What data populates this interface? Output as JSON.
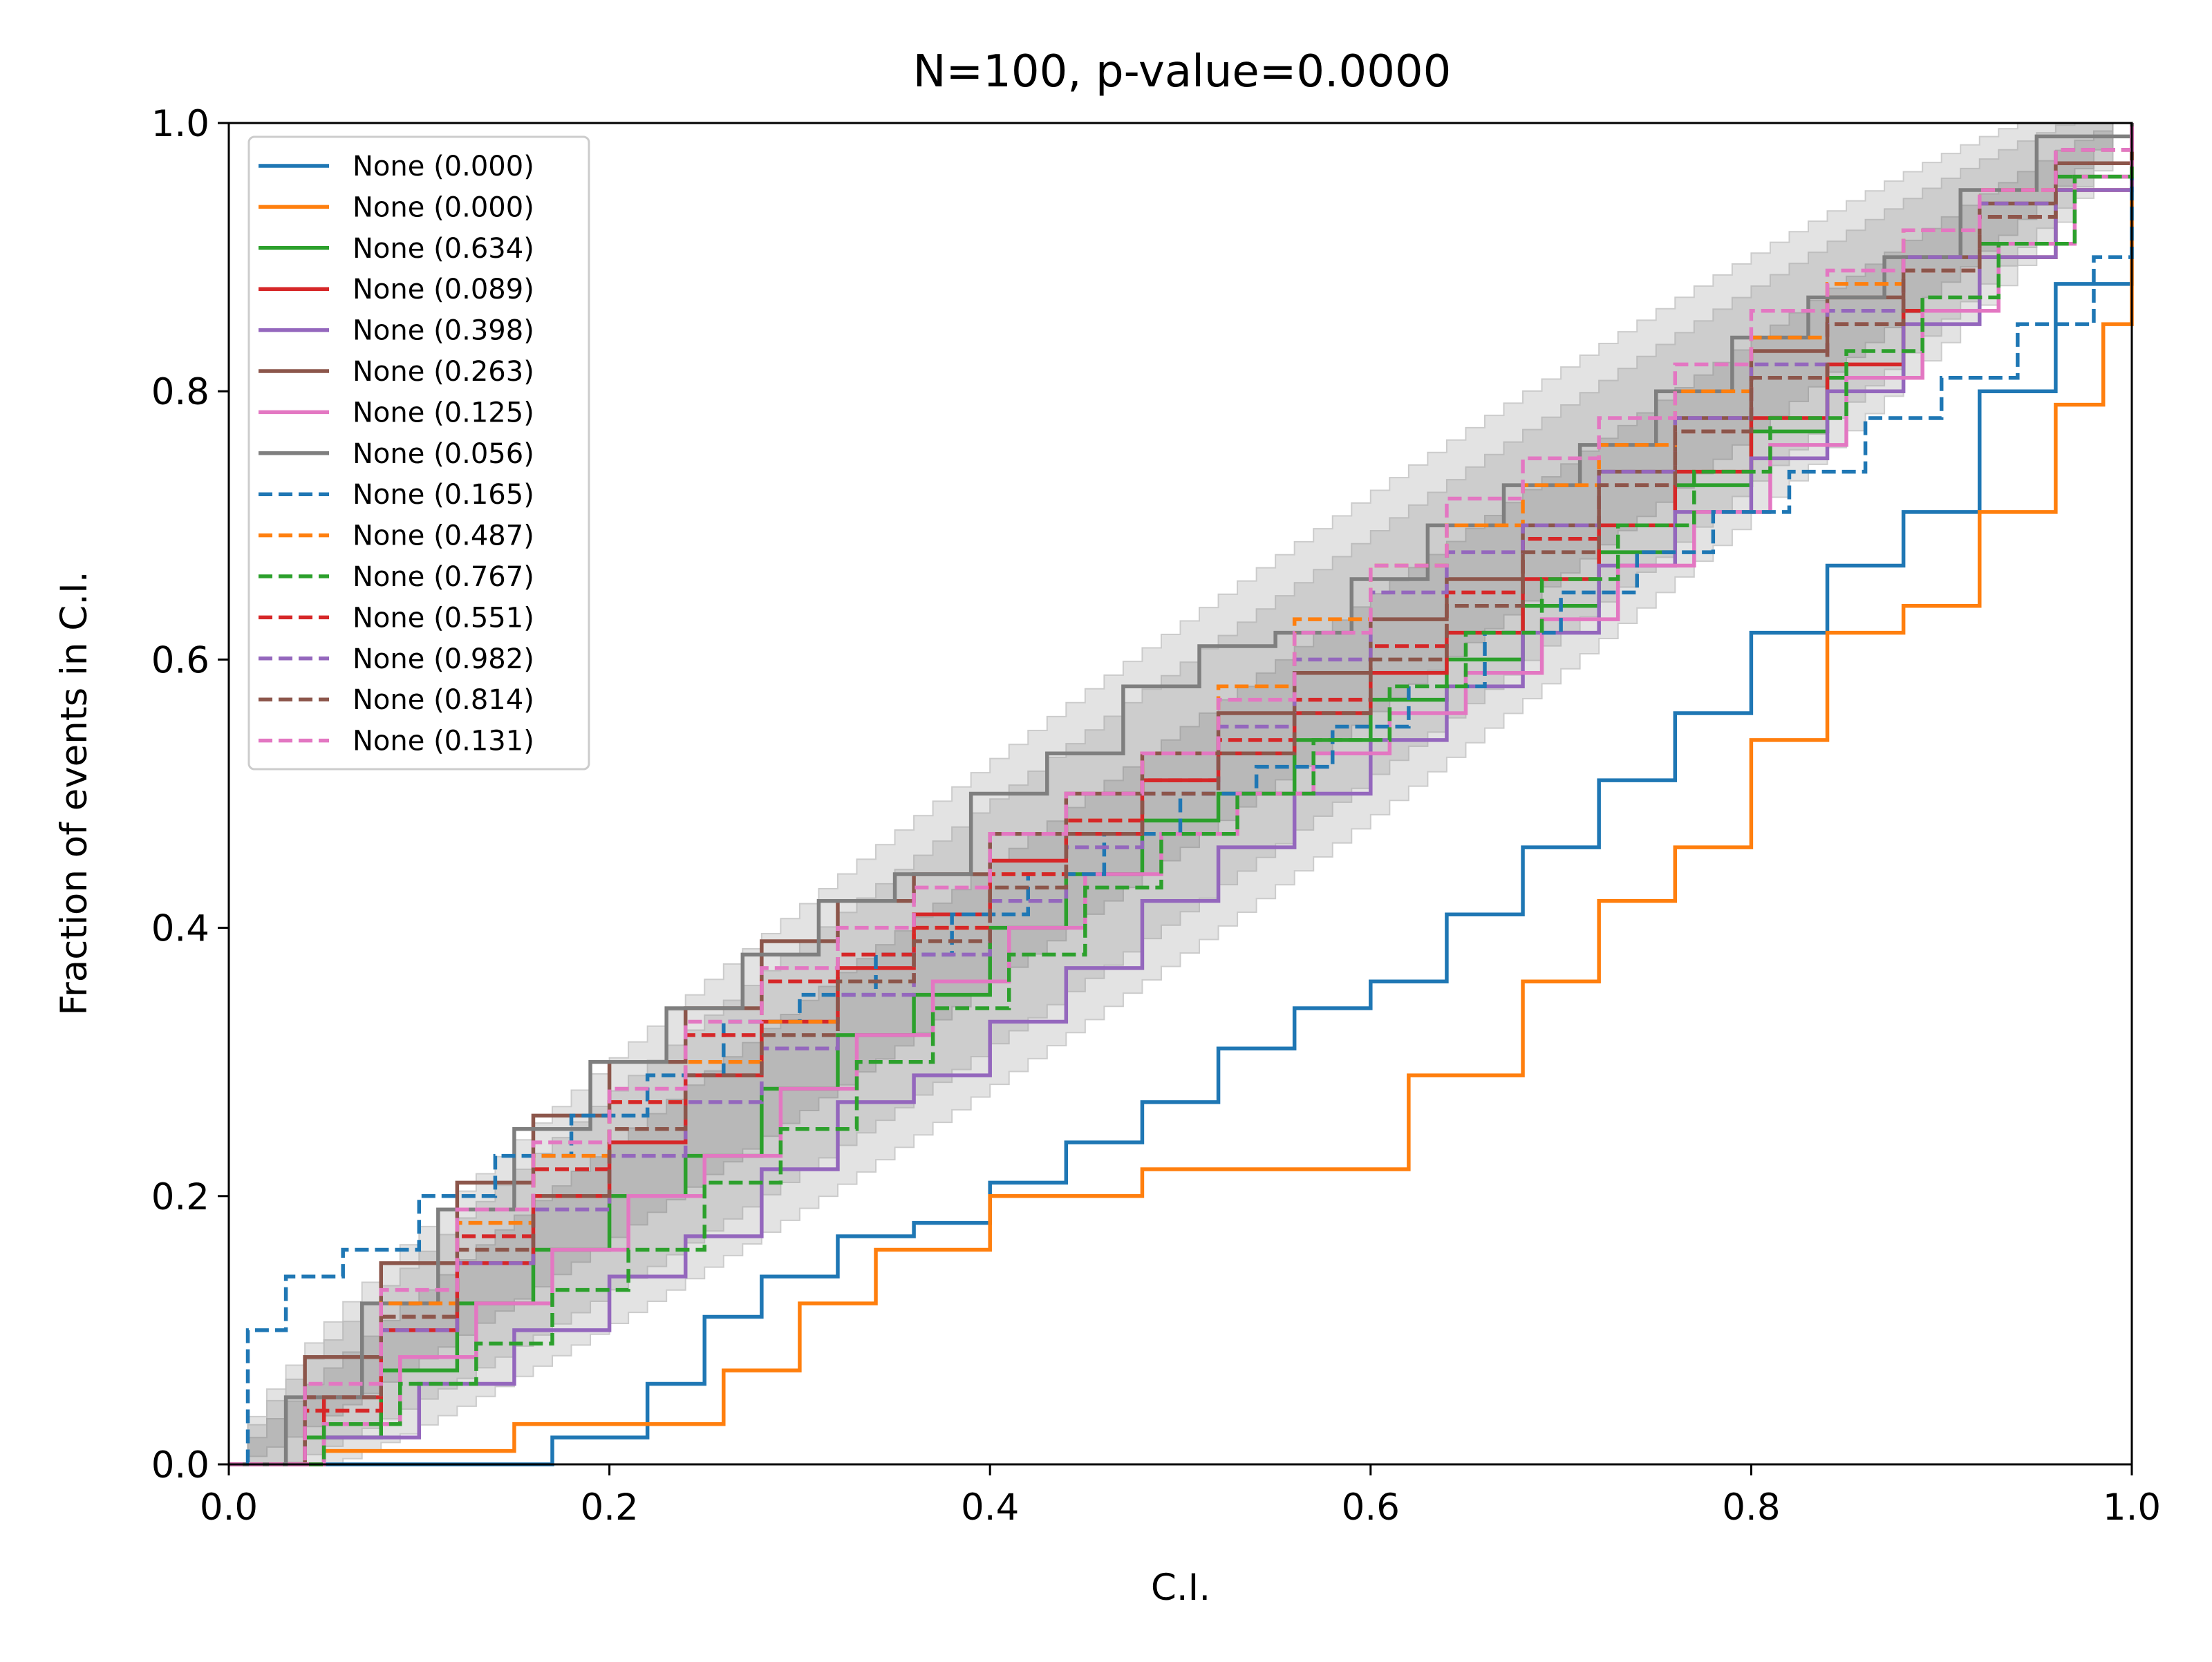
{
  "chart_data": {
    "type": "line",
    "title": "N=100, p-value=0.0000",
    "xlabel": "C.I.",
    "ylabel": "Fraction of events in C.I.",
    "xlim": [
      0,
      1
    ],
    "ylim": [
      0,
      1
    ],
    "xticks": [
      "0.0",
      "0.2",
      "0.4",
      "0.6",
      "0.8",
      "1.0"
    ],
    "yticks": [
      "0.0",
      "0.2",
      "0.4",
      "0.6",
      "0.8",
      "1.0"
    ],
    "grid": false,
    "legend_position": "upper-left",
    "confidence_bands": [
      {
        "name": "outer",
        "level": 0.99,
        "color": "#e3e3e3",
        "edge": "#cccccc"
      },
      {
        "name": "middle",
        "level": 0.95,
        "color": "#cdcdcd",
        "edge": "#bdbdbd"
      },
      {
        "name": "inner",
        "level": 0.68,
        "color": "#b8b8b8",
        "edge": "#aaaaaa"
      }
    ],
    "series": [
      {
        "name": "None (0.000)",
        "color": "#1f77b4",
        "dash": "solid",
        "x": [
          0,
          0.12,
          0.17,
          0.22,
          0.25,
          0.28,
          0.32,
          0.36,
          0.4,
          0.44,
          0.48,
          0.52,
          0.56,
          0.6,
          0.64,
          0.68,
          0.72,
          0.76,
          0.8,
          0.84,
          0.88,
          0.92,
          0.96,
          1.0
        ],
        "y": [
          0,
          0,
          0.02,
          0.06,
          0.11,
          0.14,
          0.17,
          0.18,
          0.21,
          0.24,
          0.27,
          0.31,
          0.34,
          0.36,
          0.41,
          0.46,
          0.51,
          0.56,
          0.62,
          0.67,
          0.71,
          0.8,
          0.88,
          1.0
        ]
      },
      {
        "name": "None (0.000)",
        "color": "#ff7f0e",
        "dash": "solid",
        "x": [
          0,
          0.05,
          0.15,
          0.22,
          0.26,
          0.3,
          0.34,
          0.4,
          0.48,
          0.57,
          0.62,
          0.68,
          0.72,
          0.76,
          0.8,
          0.84,
          0.88,
          0.92,
          0.96,
          0.985,
          1.0
        ],
        "y": [
          0,
          0.01,
          0.03,
          0.03,
          0.07,
          0.12,
          0.16,
          0.2,
          0.22,
          0.22,
          0.29,
          0.36,
          0.42,
          0.46,
          0.54,
          0.62,
          0.64,
          0.71,
          0.79,
          0.85,
          1.0
        ]
      },
      {
        "name": "None (0.634)",
        "color": "#2ca02c",
        "dash": "solid",
        "x": [
          0,
          0.04,
          0.08,
          0.12,
          0.16,
          0.2,
          0.24,
          0.28,
          0.32,
          0.36,
          0.4,
          0.44,
          0.48,
          0.52,
          0.56,
          0.6,
          0.64,
          0.68,
          0.72,
          0.76,
          0.8,
          0.84,
          0.88,
          0.92,
          0.96,
          1.0
        ],
        "y": [
          0,
          0.02,
          0.07,
          0.12,
          0.16,
          0.2,
          0.23,
          0.28,
          0.32,
          0.35,
          0.4,
          0.44,
          0.48,
          0.5,
          0.54,
          0.57,
          0.6,
          0.64,
          0.68,
          0.73,
          0.77,
          0.81,
          0.86,
          0.91,
          0.96,
          1.0
        ]
      },
      {
        "name": "None (0.089)",
        "color": "#d62728",
        "dash": "solid",
        "x": [
          0,
          0.05,
          0.08,
          0.12,
          0.16,
          0.2,
          0.24,
          0.28,
          0.32,
          0.36,
          0.4,
          0.44,
          0.48,
          0.52,
          0.56,
          0.6,
          0.64,
          0.68,
          0.72,
          0.76,
          0.8,
          0.84,
          0.88,
          0.92,
          0.96,
          1.0
        ],
        "y": [
          0,
          0.05,
          0.1,
          0.15,
          0.2,
          0.24,
          0.29,
          0.33,
          0.37,
          0.41,
          0.45,
          0.47,
          0.51,
          0.53,
          0.56,
          0.59,
          0.62,
          0.66,
          0.7,
          0.74,
          0.78,
          0.82,
          0.86,
          0.9,
          0.95,
          1.0
        ]
      },
      {
        "name": "None (0.398)",
        "color": "#9467bd",
        "dash": "solid",
        "x": [
          0,
          0.05,
          0.1,
          0.15,
          0.2,
          0.24,
          0.28,
          0.32,
          0.36,
          0.4,
          0.44,
          0.48,
          0.52,
          0.56,
          0.6,
          0.64,
          0.68,
          0.72,
          0.76,
          0.8,
          0.84,
          0.88,
          0.92,
          0.96,
          1.0
        ],
        "y": [
          0,
          0.02,
          0.06,
          0.1,
          0.14,
          0.17,
          0.22,
          0.27,
          0.29,
          0.33,
          0.37,
          0.42,
          0.46,
          0.5,
          0.54,
          0.58,
          0.62,
          0.67,
          0.71,
          0.75,
          0.8,
          0.85,
          0.9,
          0.95,
          1.0
        ]
      },
      {
        "name": "None (0.263)",
        "color": "#8c564b",
        "dash": "solid",
        "x": [
          0,
          0.04,
          0.08,
          0.12,
          0.16,
          0.2,
          0.24,
          0.28,
          0.32,
          0.36,
          0.4,
          0.44,
          0.48,
          0.52,
          0.56,
          0.6,
          0.64,
          0.68,
          0.72,
          0.76,
          0.8,
          0.84,
          0.88,
          0.92,
          0.96,
          1.0
        ],
        "y": [
          0,
          0.08,
          0.15,
          0.21,
          0.26,
          0.3,
          0.34,
          0.39,
          0.42,
          0.44,
          0.47,
          0.5,
          0.53,
          0.56,
          0.59,
          0.63,
          0.66,
          0.7,
          0.74,
          0.78,
          0.83,
          0.87,
          0.9,
          0.94,
          0.97,
          1.0
        ]
      },
      {
        "name": "None (0.125)",
        "color": "#e377c2",
        "dash": "solid",
        "x": [
          0,
          0.05,
          0.09,
          0.13,
          0.17,
          0.21,
          0.25,
          0.29,
          0.33,
          0.37,
          0.41,
          0.45,
          0.49,
          0.53,
          0.57,
          0.61,
          0.65,
          0.69,
          0.73,
          0.77,
          0.81,
          0.85,
          0.89,
          0.93,
          0.97,
          1.0
        ],
        "y": [
          0,
          0.03,
          0.08,
          0.12,
          0.16,
          0.2,
          0.23,
          0.28,
          0.32,
          0.36,
          0.4,
          0.44,
          0.47,
          0.5,
          0.53,
          0.56,
          0.59,
          0.63,
          0.67,
          0.71,
          0.76,
          0.81,
          0.86,
          0.91,
          0.96,
          1.0
        ]
      },
      {
        "name": "None (0.056)",
        "color": "#7f7f7f",
        "dash": "solid",
        "x": [
          0,
          0.03,
          0.07,
          0.11,
          0.15,
          0.19,
          0.23,
          0.27,
          0.31,
          0.35,
          0.39,
          0.43,
          0.47,
          0.51,
          0.55,
          0.59,
          0.63,
          0.67,
          0.71,
          0.75,
          0.79,
          0.83,
          0.87,
          0.91,
          0.95,
          1.0
        ],
        "y": [
          0,
          0.05,
          0.12,
          0.19,
          0.25,
          0.3,
          0.34,
          0.38,
          0.42,
          0.44,
          0.5,
          0.53,
          0.58,
          0.61,
          0.62,
          0.66,
          0.7,
          0.73,
          0.76,
          0.8,
          0.84,
          0.87,
          0.9,
          0.95,
          0.99,
          1.0
        ]
      },
      {
        "name": "None (0.165)",
        "color": "#1f77b4",
        "dash": "dashed",
        "x": [
          0,
          0.01,
          0.03,
          0.06,
          0.1,
          0.14,
          0.18,
          0.22,
          0.26,
          0.3,
          0.34,
          0.38,
          0.42,
          0.46,
          0.5,
          0.54,
          0.58,
          0.62,
          0.66,
          0.7,
          0.74,
          0.78,
          0.82,
          0.86,
          0.9,
          0.94,
          0.98,
          1.0
        ],
        "y": [
          0,
          0.1,
          0.14,
          0.16,
          0.2,
          0.23,
          0.26,
          0.29,
          0.33,
          0.35,
          0.38,
          0.41,
          0.44,
          0.47,
          0.5,
          0.52,
          0.55,
          0.58,
          0.62,
          0.65,
          0.68,
          0.71,
          0.74,
          0.78,
          0.81,
          0.85,
          0.9,
          0.96
        ]
      },
      {
        "name": "None (0.487)",
        "color": "#ff7f0e",
        "dash": "dashed",
        "x": [
          0,
          0.04,
          0.08,
          0.12,
          0.16,
          0.2,
          0.24,
          0.28,
          0.32,
          0.36,
          0.4,
          0.44,
          0.48,
          0.52,
          0.56,
          0.6,
          0.64,
          0.68,
          0.72,
          0.76,
          0.8,
          0.84,
          0.88,
          0.92,
          0.96,
          1.0
        ],
        "y": [
          0,
          0.05,
          0.12,
          0.18,
          0.23,
          0.27,
          0.3,
          0.33,
          0.36,
          0.4,
          0.44,
          0.48,
          0.53,
          0.58,
          0.63,
          0.67,
          0.7,
          0.73,
          0.76,
          0.8,
          0.84,
          0.88,
          0.92,
          0.95,
          0.98,
          1.0
        ]
      },
      {
        "name": "None (0.767)",
        "color": "#2ca02c",
        "dash": "dashed",
        "x": [
          0,
          0.05,
          0.09,
          0.13,
          0.17,
          0.21,
          0.25,
          0.29,
          0.33,
          0.37,
          0.41,
          0.45,
          0.49,
          0.53,
          0.57,
          0.61,
          0.65,
          0.69,
          0.73,
          0.77,
          0.81,
          0.85,
          0.89,
          0.93,
          0.97,
          1.0
        ],
        "y": [
          0,
          0.03,
          0.06,
          0.09,
          0.13,
          0.16,
          0.21,
          0.25,
          0.3,
          0.34,
          0.38,
          0.43,
          0.47,
          0.5,
          0.54,
          0.58,
          0.62,
          0.66,
          0.7,
          0.74,
          0.78,
          0.83,
          0.87,
          0.91,
          0.96,
          1.0
        ]
      },
      {
        "name": "None (0.551)",
        "color": "#d62728",
        "dash": "dashed",
        "x": [
          0,
          0.04,
          0.08,
          0.12,
          0.16,
          0.2,
          0.24,
          0.28,
          0.32,
          0.36,
          0.4,
          0.44,
          0.48,
          0.52,
          0.56,
          0.6,
          0.64,
          0.68,
          0.72,
          0.76,
          0.8,
          0.84,
          0.88,
          0.92,
          0.96,
          1.0
        ],
        "y": [
          0,
          0.04,
          0.11,
          0.17,
          0.22,
          0.27,
          0.32,
          0.36,
          0.38,
          0.4,
          0.44,
          0.48,
          0.51,
          0.54,
          0.57,
          0.61,
          0.65,
          0.69,
          0.73,
          0.77,
          0.81,
          0.85,
          0.89,
          0.93,
          0.97,
          1.0
        ]
      },
      {
        "name": "None (0.982)",
        "color": "#9467bd",
        "dash": "dashed",
        "x": [
          0,
          0.04,
          0.08,
          0.12,
          0.16,
          0.2,
          0.24,
          0.28,
          0.32,
          0.36,
          0.4,
          0.44,
          0.48,
          0.52,
          0.56,
          0.6,
          0.64,
          0.68,
          0.72,
          0.76,
          0.8,
          0.84,
          0.88,
          0.92,
          0.96,
          1.0
        ],
        "y": [
          0,
          0.05,
          0.1,
          0.15,
          0.19,
          0.23,
          0.27,
          0.31,
          0.35,
          0.38,
          0.42,
          0.46,
          0.5,
          0.55,
          0.6,
          0.65,
          0.68,
          0.7,
          0.74,
          0.78,
          0.82,
          0.86,
          0.9,
          0.94,
          0.98,
          1.0
        ]
      },
      {
        "name": "None (0.814)",
        "color": "#8c564b",
        "dash": "dashed",
        "x": [
          0,
          0.04,
          0.08,
          0.12,
          0.16,
          0.2,
          0.24,
          0.28,
          0.32,
          0.36,
          0.4,
          0.44,
          0.48,
          0.52,
          0.56,
          0.6,
          0.64,
          0.68,
          0.72,
          0.76,
          0.8,
          0.84,
          0.88,
          0.92,
          0.96,
          1.0
        ],
        "y": [
          0,
          0.05,
          0.11,
          0.16,
          0.2,
          0.25,
          0.29,
          0.32,
          0.36,
          0.39,
          0.43,
          0.47,
          0.5,
          0.53,
          0.56,
          0.6,
          0.64,
          0.68,
          0.73,
          0.77,
          0.81,
          0.85,
          0.89,
          0.93,
          0.97,
          1.0
        ]
      },
      {
        "name": "None (0.131)",
        "color": "#e377c2",
        "dash": "dashed",
        "x": [
          0,
          0.04,
          0.08,
          0.12,
          0.16,
          0.2,
          0.24,
          0.28,
          0.32,
          0.36,
          0.4,
          0.44,
          0.48,
          0.52,
          0.56,
          0.6,
          0.64,
          0.68,
          0.72,
          0.76,
          0.8,
          0.84,
          0.88,
          0.92,
          0.96,
          1.0
        ],
        "y": [
          0,
          0.06,
          0.13,
          0.19,
          0.24,
          0.28,
          0.33,
          0.37,
          0.4,
          0.43,
          0.47,
          0.5,
          0.53,
          0.57,
          0.62,
          0.67,
          0.72,
          0.75,
          0.78,
          0.82,
          0.86,
          0.89,
          0.92,
          0.95,
          0.98,
          1.0
        ]
      }
    ]
  }
}
